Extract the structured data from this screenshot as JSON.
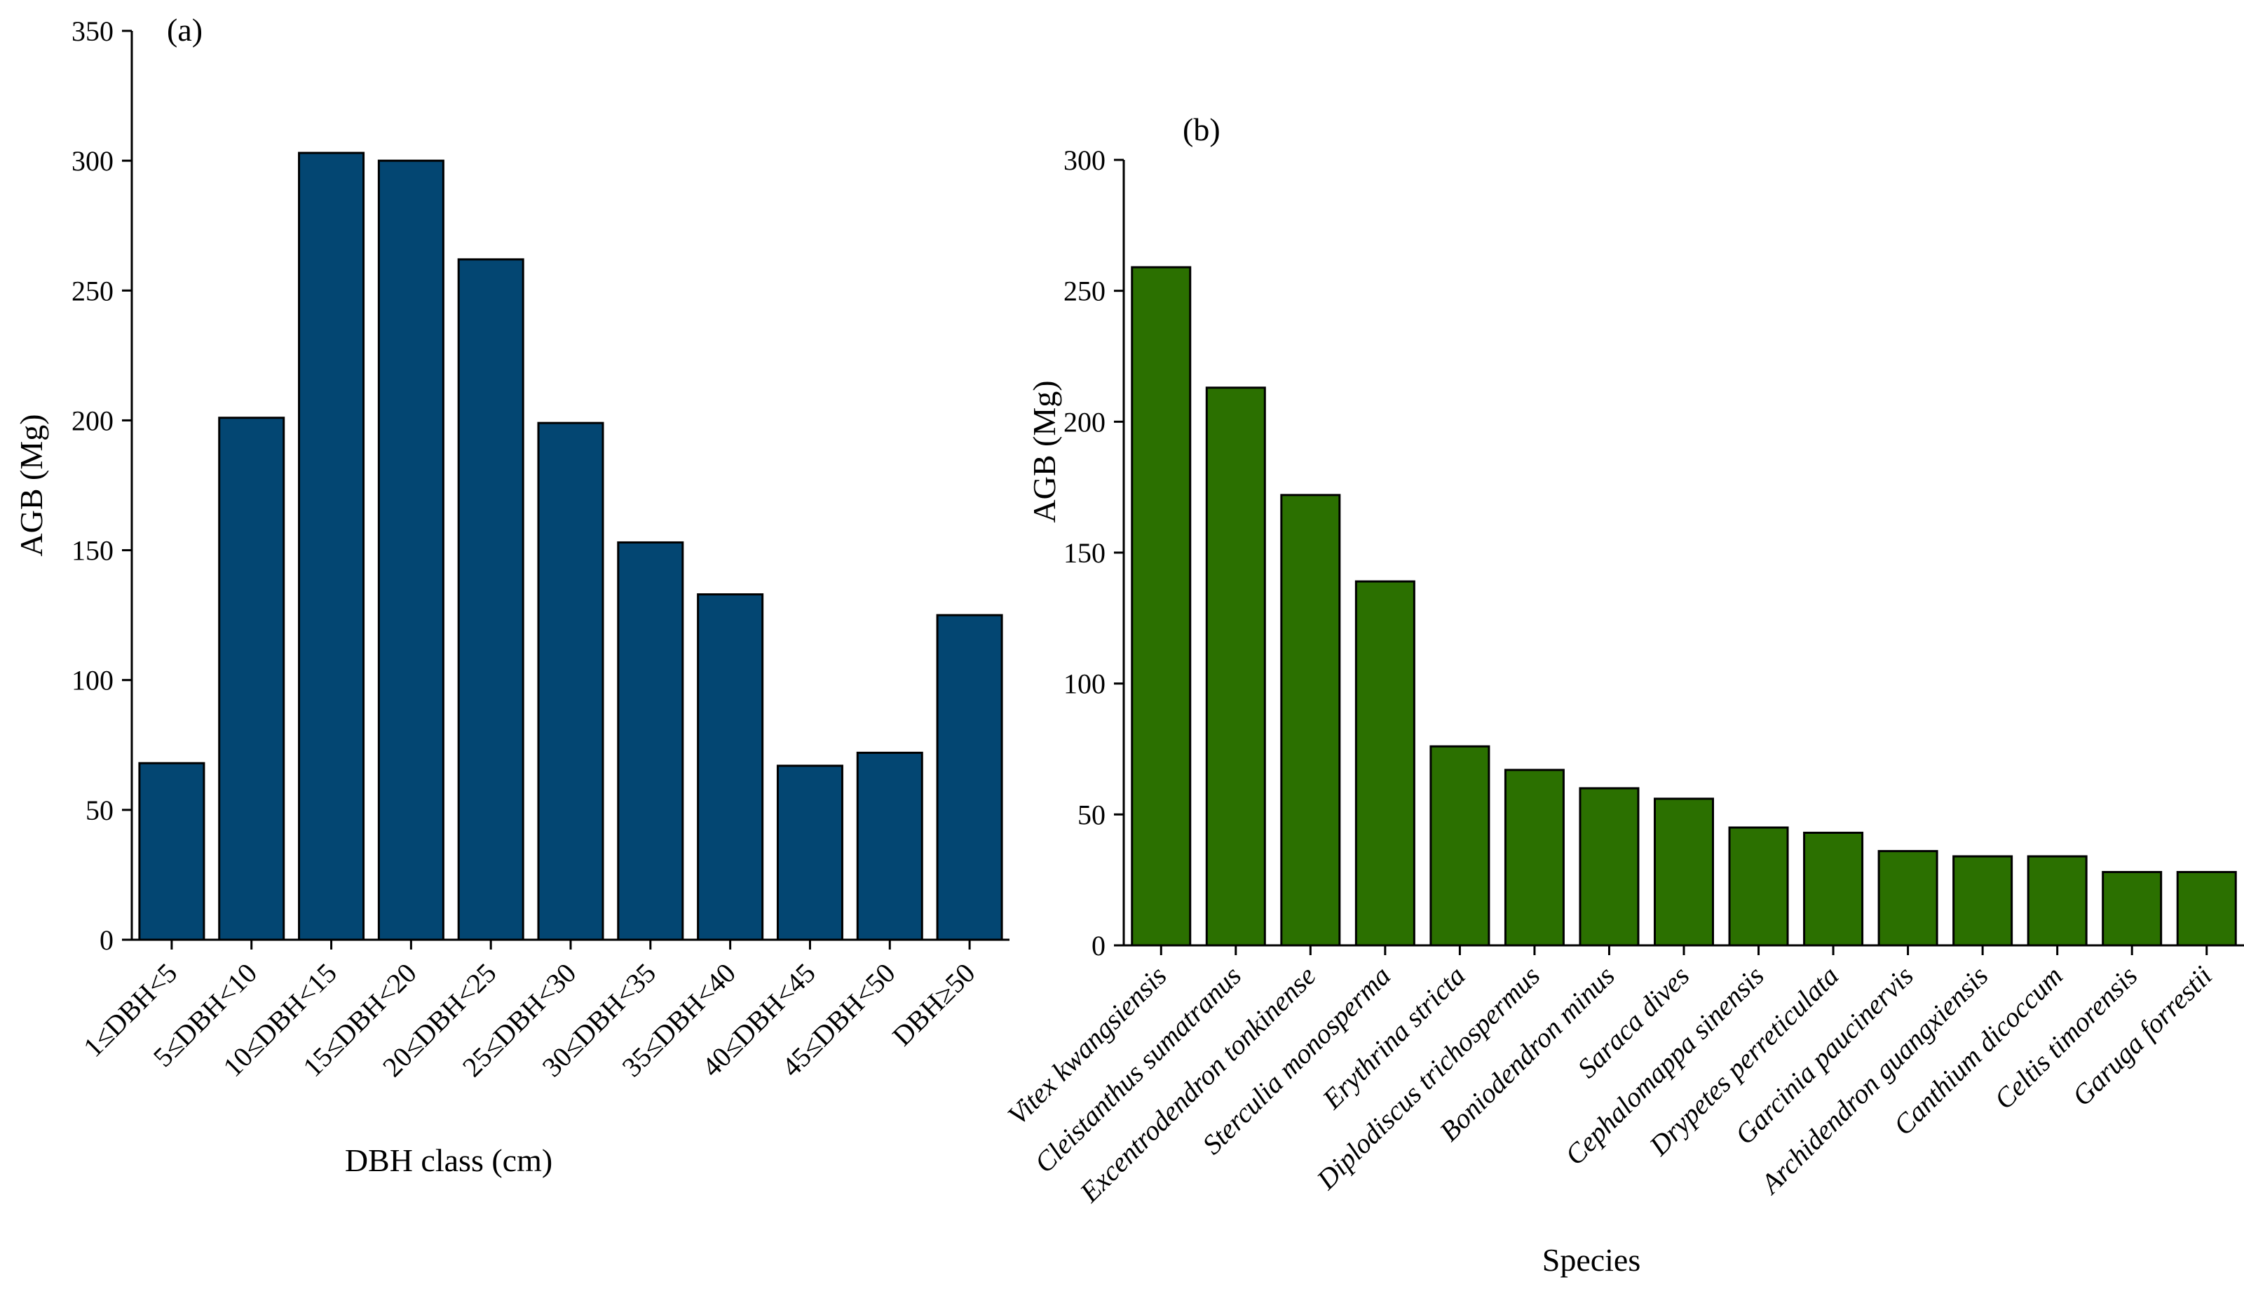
{
  "chart_data": [
    {
      "type": "bar",
      "panel_label": "(a)",
      "title": "",
      "xlabel": "DBH class (cm)",
      "ylabel": "AGB (Mg)",
      "ylim": [
        0,
        350
      ],
      "yticks": [
        0,
        50,
        100,
        150,
        200,
        250,
        300,
        350
      ],
      "ytick_labels": [
        "0",
        "50",
        "100",
        "150",
        "200",
        "250",
        "300",
        "350"
      ],
      "italic_categories": false,
      "categories": [
        "1≤DBH<5",
        "5≤DBH<10",
        "10≤DBH<15",
        "15≤DBH<20",
        "20≤DBH<25",
        "25≤DBH<30",
        "30≤DBH<35",
        "35≤DBH<40",
        "40≤DBH<45",
        "45≤DBH<50",
        "DBH≥50"
      ],
      "values": [
        68,
        201,
        303,
        300,
        262,
        199,
        153,
        133,
        67,
        72,
        125
      ],
      "bar_color": "#034672",
      "grid": false
    },
    {
      "type": "bar",
      "panel_label": "(b)",
      "title": "",
      "xlabel": "Species",
      "ylabel": "AGB (Mg)",
      "ylim": [
        0,
        300
      ],
      "yticks": [
        0,
        50,
        100,
        150,
        200,
        250,
        300
      ],
      "ytick_labels": [
        "0",
        "50",
        "100",
        "150",
        "200",
        "250",
        "300"
      ],
      "italic_categories": true,
      "categories": [
        "Vitex kwangsiensis",
        "Cleistanthus sumatranus",
        "Excentrodendron tonkinense",
        "Sterculia monosperma",
        "Erythrina stricta",
        "Diplodiscus trichospermus",
        "Boniodendron minus",
        "Saraca dives",
        "Cephalomappa sinensis",
        "Drypetes perreticulata",
        "Garcinia paucinervis",
        "Archidendron guangxiensis",
        "Canthium dicoccum",
        "Celtis timorensis",
        "Garuga forrestii"
      ],
      "values": [
        259,
        213,
        172,
        139,
        76,
        67,
        60,
        56,
        45,
        43,
        36,
        34,
        34,
        28,
        28
      ],
      "bar_color": "#2b7000",
      "grid": false
    }
  ]
}
